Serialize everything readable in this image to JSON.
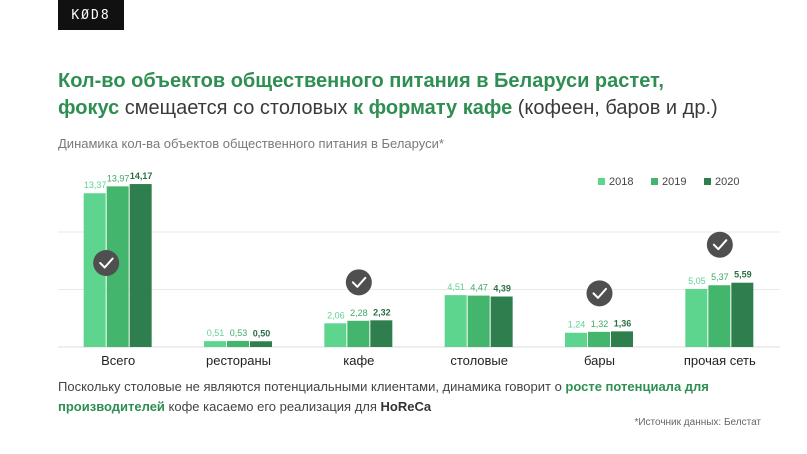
{
  "logo": "KØD8",
  "headline": {
    "line1": "Кол-во объектов общественного питания в Беларуси растет,",
    "line2_bold1": "фокус",
    "line2_mid": " смещается со столовых ",
    "line2_bold2": "к формату кафе",
    "line2_end": " (кофеен, баров и др.)"
  },
  "footnote": {
    "part1": "Поскольку столовые не являются потенциальными клиентами, динамика говорит о ",
    "highlight": "росте потенциала для производителей",
    "part2": " кофе касаемо его реализация для ",
    "bold": "HoReCa"
  },
  "source": "*Источник данных: Белстат",
  "colors": {
    "s2018": "#5ed58f",
    "s2019": "#44b56d",
    "s2020": "#2e7f4d",
    "label2018": "#62d292",
    "label2019": "#3ea865",
    "label2020": "#2b6e44",
    "check": "#4f4f4f"
  },
  "chart_data": {
    "type": "bar",
    "title": "Динамика кол-ва объектов общественного питания в Беларуси*",
    "categories": [
      "Всего",
      "рестораны",
      "кафе",
      "столовые",
      "бары",
      "прочая сеть"
    ],
    "series": [
      {
        "name": "2018",
        "values": [
          13.37,
          0.51,
          2.06,
          4.51,
          1.24,
          5.05
        ],
        "labels": [
          "13,37",
          "0,51",
          "2,06",
          "4,51",
          "1,24",
          "5,05"
        ]
      },
      {
        "name": "2019",
        "values": [
          13.97,
          0.53,
          2.28,
          4.47,
          1.32,
          5.37
        ],
        "labels": [
          "13,97",
          "0,53",
          "2,28",
          "4,47",
          "1,32",
          "5,37"
        ]
      },
      {
        "name": "2020",
        "values": [
          14.17,
          0.5,
          2.32,
          4.39,
          1.36,
          5.59
        ],
        "labels": [
          "14,17",
          "0,50",
          "2,32",
          "4,39",
          "1,36",
          "5,59"
        ]
      }
    ],
    "checkmarks": [
      "Всего",
      "кафе",
      "бары",
      "прочая сеть"
    ],
    "legend_position": "top-right",
    "grid": true,
    "ylim": [
      0,
      15
    ]
  }
}
